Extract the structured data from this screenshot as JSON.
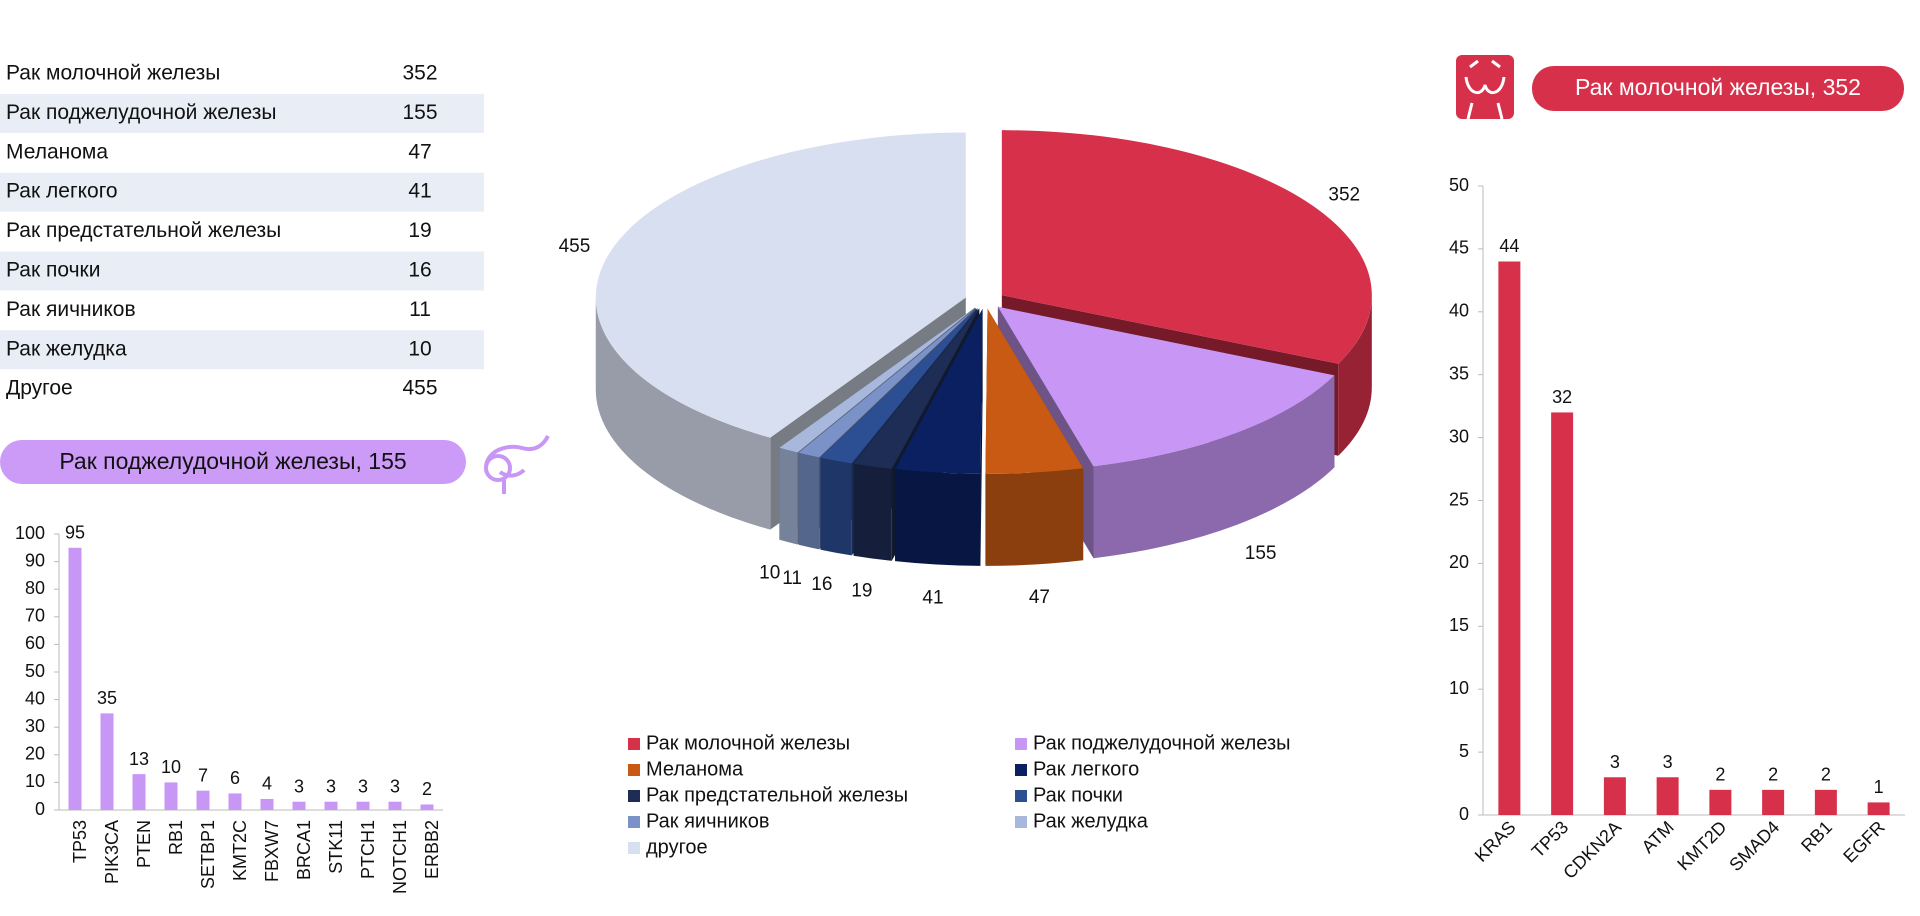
{
  "table": {
    "rows": [
      [
        "Рак молочной железы",
        352
      ],
      [
        "Рак поджелудочной железы",
        155
      ],
      [
        "Меланома",
        47
      ],
      [
        "Рак легкого",
        41
      ],
      [
        "Рак предстательной железы",
        19
      ],
      [
        "Рак почки",
        16
      ],
      [
        "Рак яичников",
        11
      ],
      [
        "Рак желудка",
        10
      ],
      [
        "Другое",
        455
      ]
    ]
  },
  "chart_data": [
    {
      "type": "pie",
      "categories": [
        "Рак молочной железы",
        "Рак поджелудочной железы",
        "Меланома",
        "Рак легкого",
        "Рак предстательной железы",
        "Рак почки",
        "Рак яичников",
        "Рак желудка",
        "другое"
      ],
      "values": [
        352,
        155,
        47,
        41,
        19,
        16,
        11,
        10,
        455
      ],
      "colors": [
        "#d6304a",
        "#c896f5",
        "#c85a14",
        "#0a2060",
        "#1e2d55",
        "#2c4f94",
        "#7a92c8",
        "#a8b8dc",
        "#d8dff0"
      ]
    },
    {
      "type": "bar",
      "title": "Рак поджелудочной железы, 155",
      "categories": [
        "TP53",
        "PIK3CA",
        "PTEN",
        "RB1",
        "SETBP1",
        "KMT2C",
        "FBXW7",
        "BRCA1",
        "STK11",
        "PTCH1",
        "NOTCH1",
        "ERBB2"
      ],
      "values": [
        95,
        35,
        13,
        10,
        7,
        6,
        4,
        3,
        3,
        3,
        3,
        2
      ],
      "color": "#c896f5",
      "ylim": [
        0,
        100
      ],
      "yticks": [
        0,
        10,
        20,
        30,
        40,
        50,
        60,
        70,
        80,
        90,
        100
      ]
    },
    {
      "type": "bar",
      "title": "Рак молочной железы, 352",
      "categories": [
        "KRAS",
        "TP53",
        "CDKN2A",
        "ATM",
        "KMT2D",
        "SMAD4",
        "RB1",
        "EGFR"
      ],
      "values": [
        44,
        32,
        3,
        3,
        2,
        2,
        2,
        1
      ],
      "color": "#d6304a",
      "ylim": [
        0,
        50
      ],
      "yticks": [
        0,
        5,
        10,
        15,
        20,
        25,
        30,
        35,
        40,
        45,
        50
      ]
    }
  ]
}
